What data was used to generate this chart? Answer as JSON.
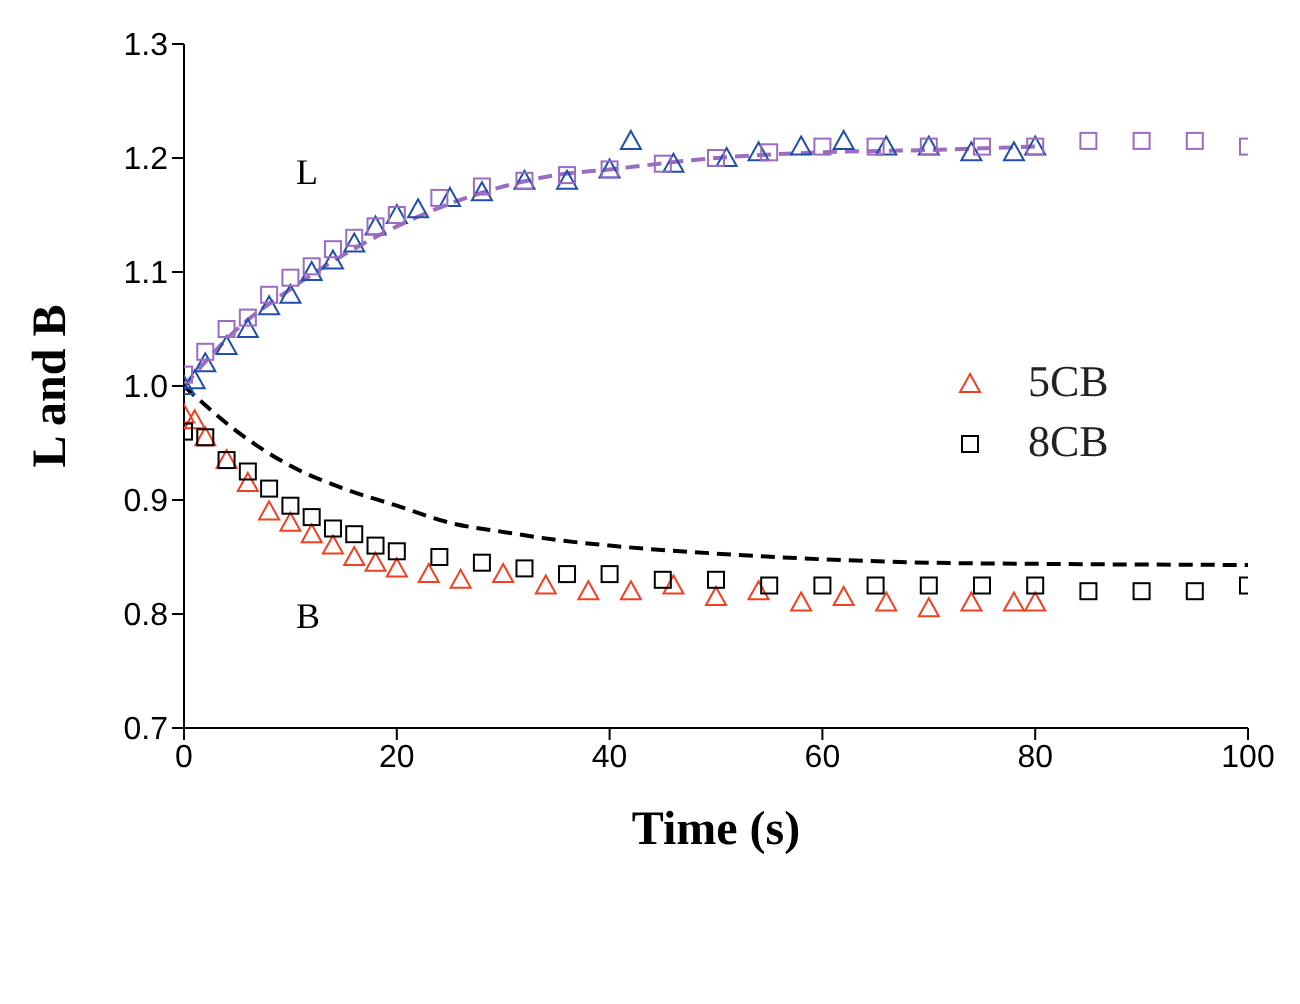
{
  "chart_data": {
    "type": "scatter",
    "xlabel": "Time (s)",
    "ylabel": "L and B",
    "xlim": [
      0,
      100
    ],
    "xticks": [
      0,
      20,
      40,
      60,
      80,
      100
    ],
    "ylim": [
      0.7,
      1.3
    ],
    "yticks": [
      0.7,
      0.8,
      0.9,
      {
        "value": 1,
        "label": "1.0"
      },
      1.1,
      1.2,
      1.3
    ],
    "legend": "right",
    "annotations": [
      "L",
      "B"
    ],
    "series": [
      {
        "name": "5CB",
        "color": "#f04020",
        "marker": "triangle",
        "x": [
          0,
          1,
          2,
          4,
          6,
          8,
          10,
          12,
          14,
          16,
          18,
          20,
          23,
          26,
          30,
          34,
          38,
          42,
          46,
          50,
          54,
          58,
          62,
          66,
          70,
          74,
          78,
          80
        ],
        "values": [
          0.975,
          0.97,
          0.955,
          0.935,
          0.915,
          0.89,
          0.88,
          0.87,
          0.86,
          0.85,
          0.845,
          0.84,
          0.835,
          0.83,
          0.835,
          0.825,
          0.82,
          0.82,
          0.825,
          0.815,
          0.82,
          0.81,
          0.815,
          0.81,
          0.805,
          0.81,
          0.81,
          0.81
        ]
      },
      {
        "name": "8CB",
        "color": "#000000",
        "marker": "square",
        "x": [
          0,
          2,
          4,
          6,
          8,
          10,
          12,
          14,
          16,
          18,
          20,
          24,
          28,
          32,
          36,
          40,
          45,
          50,
          55,
          60,
          65,
          70,
          75,
          80,
          85,
          90,
          95,
          100
        ],
        "values": [
          0.96,
          0.955,
          0.935,
          0.925,
          0.91,
          0.895,
          0.885,
          0.875,
          0.87,
          0.86,
          0.855,
          0.85,
          0.845,
          0.84,
          0.835,
          0.835,
          0.83,
          0.83,
          0.825,
          0.825,
          0.825,
          0.825,
          0.825,
          0.825,
          0.82,
          0.82,
          0.82,
          0.825
        ]
      },
      {
        "color": "#1f4fa8",
        "marker": "triangle",
        "x": [
          0,
          1,
          2,
          4,
          6,
          8,
          10,
          12,
          14,
          16,
          18,
          20,
          22,
          25,
          28,
          32,
          36,
          40,
          42,
          46,
          51,
          54,
          58,
          62,
          66,
          70,
          74,
          78,
          80
        ],
        "values": [
          1.0,
          1.005,
          1.02,
          1.035,
          1.05,
          1.07,
          1.08,
          1.1,
          1.11,
          1.125,
          1.14,
          1.15,
          1.155,
          1.165,
          1.17,
          1.18,
          1.18,
          1.19,
          1.215,
          1.195,
          1.2,
          1.205,
          1.21,
          1.215,
          1.21,
          1.21,
          1.205,
          1.205,
          1.21
        ]
      },
      {
        "color": "#9b6cc0",
        "marker": "square",
        "x": [
          0,
          2,
          4,
          6,
          8,
          10,
          12,
          14,
          16,
          18,
          20,
          24,
          28,
          32,
          36,
          40,
          45,
          50,
          55,
          60,
          65,
          70,
          75,
          80,
          85,
          90,
          95,
          100
        ],
        "values": [
          1.01,
          1.03,
          1.05,
          1.06,
          1.08,
          1.095,
          1.105,
          1.12,
          1.13,
          1.14,
          1.15,
          1.165,
          1.175,
          1.18,
          1.185,
          1.19,
          1.195,
          1.2,
          1.205,
          1.21,
          1.21,
          1.21,
          1.21,
          1.21,
          1.215,
          1.215,
          1.215,
          1.21
        ]
      },
      {
        "type": "line",
        "color": "#9b6cc0",
        "marker": "none",
        "line_style": "dashed",
        "x": [
          0,
          5,
          10,
          15,
          20,
          25,
          30,
          35,
          40,
          50,
          60,
          70,
          80
        ],
        "values": [
          1.0,
          1.05,
          1.085,
          1.115,
          1.14,
          1.16,
          1.175,
          1.185,
          1.19,
          1.2,
          1.205,
          1.207,
          1.21
        ]
      },
      {
        "type": "line",
        "color": "#000000",
        "marker": "none",
        "line_style": "dashed",
        "x": [
          0,
          5,
          10,
          15,
          20,
          25,
          30,
          35,
          40,
          50,
          60,
          70,
          80,
          100
        ],
        "values": [
          1.0,
          0.96,
          0.93,
          0.91,
          0.895,
          0.88,
          0.872,
          0.865,
          0.86,
          0.853,
          0.848,
          0.845,
          0.844,
          0.843
        ]
      }
    ]
  }
}
